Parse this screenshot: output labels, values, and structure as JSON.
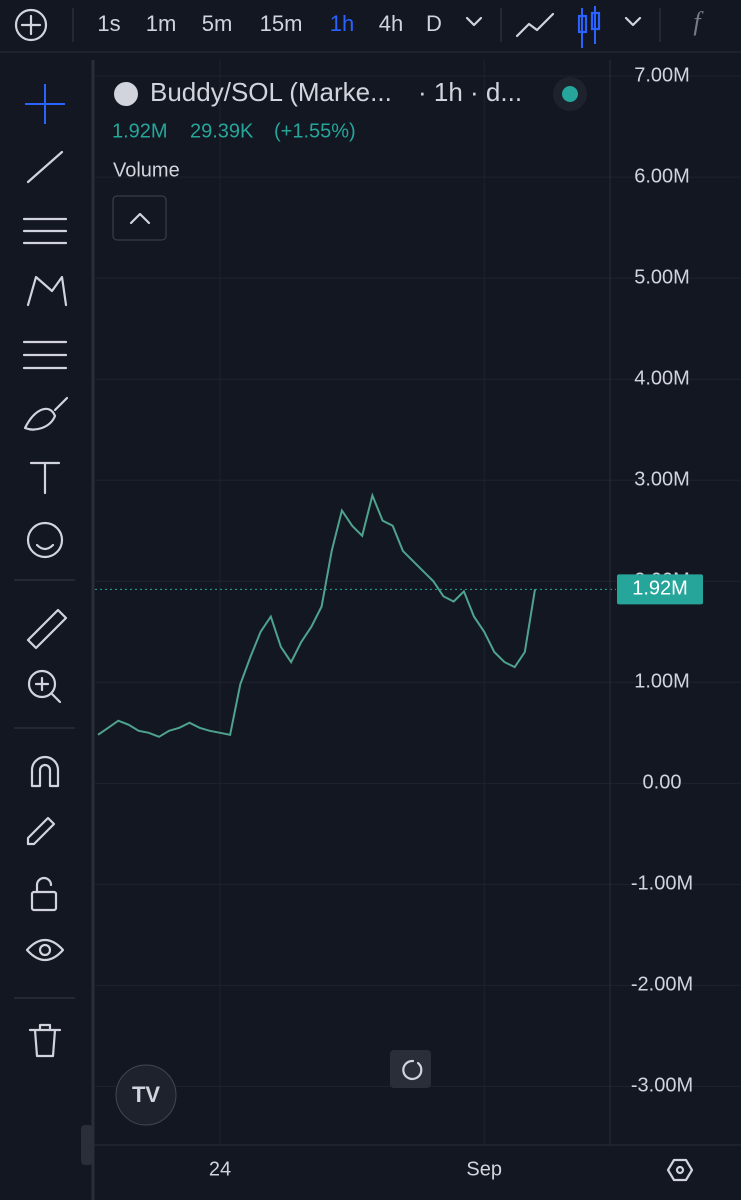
{
  "toolbar": {
    "intervals": [
      "1s",
      "1m",
      "5m",
      "15m",
      "1h",
      "4h",
      "D"
    ],
    "active": 4
  },
  "legend": {
    "symbol": "Buddy/SOL (Marke...",
    "meta": "· 1h · d...",
    "last": "1.92M",
    "change": "29.39K",
    "change_pct": "(+1.55%)",
    "study": "Volume"
  },
  "chart_data": {
    "type": "line",
    "categories": [
      null,
      null,
      null,
      null,
      null,
      null,
      null,
      null,
      null,
      null,
      null,
      null,
      "24",
      null,
      null,
      null,
      null,
      null,
      null,
      null,
      null,
      null,
      null,
      null,
      null,
      null,
      null,
      null,
      null,
      null,
      null,
      null,
      null,
      null,
      null,
      null,
      null,
      null,
      "Sep",
      null,
      null,
      null,
      null,
      null
    ],
    "values": [
      480000,
      550000,
      620000,
      580000,
      520000,
      500000,
      460000,
      520000,
      550000,
      600000,
      550000,
      520000,
      500000,
      480000,
      980000,
      1250000,
      1500000,
      1650000,
      1350000,
      1200000,
      1400000,
      1550000,
      1750000,
      2300000,
      2700000,
      2550000,
      2450000,
      2850000,
      2600000,
      2550000,
      2300000,
      2200000,
      2100000,
      2000000,
      1850000,
      1800000,
      1900000,
      1650000,
      1500000,
      1300000,
      1200000,
      1150000,
      1300000,
      1920000
    ],
    "color": "#4fa38e",
    "ylim": [
      -3580000,
      7110000
    ],
    "yticks": [
      {
        "value": 7000000,
        "label": "7.00M"
      },
      {
        "value": 6000000,
        "label": "6.00M"
      },
      {
        "value": 5000000,
        "label": "5.00M"
      },
      {
        "value": 4000000,
        "label": "4.00M"
      },
      {
        "value": 3000000,
        "label": "3.00M"
      },
      {
        "value": 2000000,
        "label": "2.00M"
      },
      {
        "value": 1000000,
        "label": "1.00M"
      },
      {
        "value": 0,
        "label": "0.00"
      },
      {
        "value": -1000000,
        "label": "-1.00M"
      },
      {
        "value": -2000000,
        "label": "-2.00M"
      },
      {
        "value": -3000000,
        "label": "-3.00M"
      }
    ],
    "grid": true,
    "price_line": {
      "value": 1920000,
      "label": "1.92M",
      "color": "#26a69a"
    }
  }
}
